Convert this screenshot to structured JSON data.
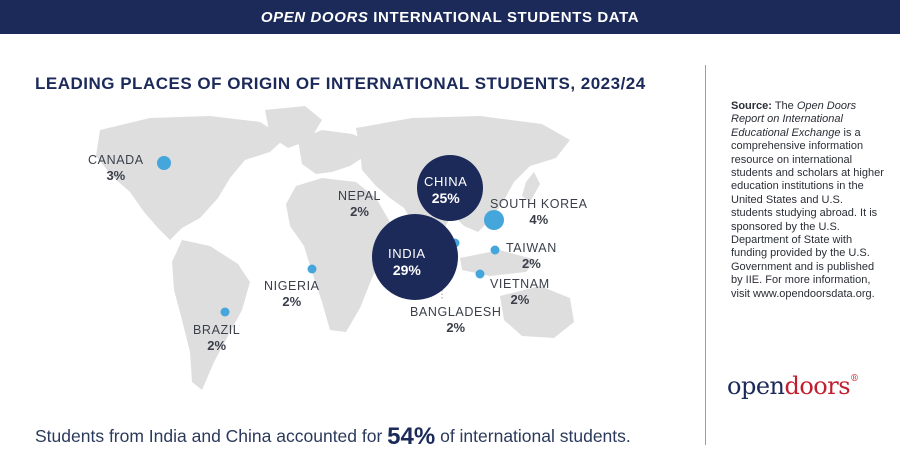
{
  "banner": {
    "italic": "OPEN DOORS",
    "rest": " INTERNATIONAL STUDENTS DATA"
  },
  "title": "LEADING PLACES OF ORIGIN OF INTERNATIONAL STUDENTS, 2023/24",
  "countries": [
    {
      "name": "CANADA",
      "pct": "3%"
    },
    {
      "name": "NEPAL",
      "pct": "2%"
    },
    {
      "name": "CHINA",
      "pct": "25%"
    },
    {
      "name": "SOUTH KOREA",
      "pct": "4%"
    },
    {
      "name": "INDIA",
      "pct": "29%"
    },
    {
      "name": "TAIWAN",
      "pct": "2%"
    },
    {
      "name": "NIGERIA",
      "pct": "2%"
    },
    {
      "name": "VIETNAM",
      "pct": "2%"
    },
    {
      "name": "BANGLADESH",
      "pct": "2%"
    },
    {
      "name": "BRAZIL",
      "pct": "2%"
    }
  ],
  "source": {
    "label": "Source:",
    "pre": " The ",
    "report": "Open Doors Report on International Educational Exchange",
    "body": " is a comprehensive information resource on international students and scholars at higher education institutions in the United States and U.S. students studying abroad. It is sponsored by the U.S. Department of State with funding provided by the U.S. Government and is published by IIE. For more information, visit www.opendoorsdata.org."
  },
  "brand": {
    "part1": "open",
    "part2": "doors",
    "reg": "®"
  },
  "summary": {
    "pre": "Students from India and China accounted for ",
    "big": "54%",
    "post": " of international students."
  },
  "colors": {
    "navy": "#1c2a5a",
    "marker": "#45a6dc",
    "land": "#dcdcdc",
    "brand_red": "#c0202e"
  }
}
